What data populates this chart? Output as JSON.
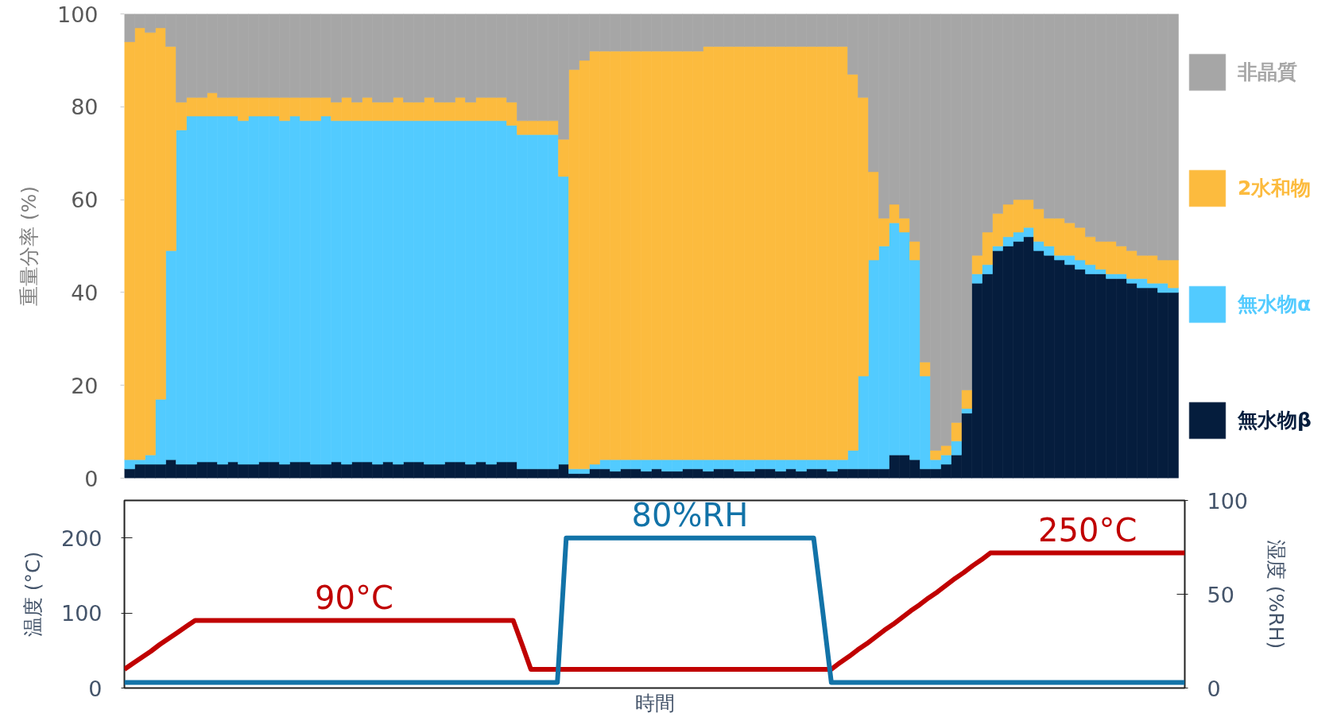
{
  "chart_data": [
    {
      "type": "bar",
      "stacked": true,
      "ylabel": "重量分率 (%)",
      "ylim": [
        0,
        100
      ],
      "yticks": [
        0,
        20,
        40,
        60,
        80,
        100
      ],
      "legend": "right",
      "categories": [
        null,
        null,
        null,
        null,
        null,
        null,
        null,
        null,
        null,
        null,
        null,
        null,
        null,
        null,
        null,
        null,
        null,
        null,
        null,
        null,
        null,
        null,
        null,
        null,
        null,
        null,
        null,
        null,
        null,
        null,
        null,
        null,
        null,
        null,
        null,
        null,
        null,
        null,
        null,
        null,
        null,
        null,
        null,
        null,
        null,
        null,
        null,
        null,
        null,
        null,
        null,
        null,
        null,
        null,
        null,
        null,
        null,
        null,
        null,
        null,
        null,
        null,
        null,
        null,
        null,
        null,
        null,
        null,
        null,
        null,
        null,
        null,
        null,
        null,
        null,
        null,
        null,
        null,
        null,
        null,
        null,
        null,
        null,
        null,
        null,
        null,
        null,
        null,
        null,
        null,
        null,
        null,
        null,
        null,
        null,
        null,
        null,
        null,
        null,
        null,
        null,
        null
      ],
      "series": [
        {
          "name": "無水物β",
          "color": "#051d3d",
          "values": [
            2,
            3,
            3,
            3,
            4,
            3,
            3,
            3.5,
            3.5,
            3,
            3.5,
            3,
            3,
            3.5,
            3.5,
            3,
            3.5,
            3.5,
            3,
            3,
            3.5,
            3,
            3.5,
            3.5,
            3,
            3.5,
            3,
            3.5,
            3.5,
            3,
            3,
            3.5,
            3.5,
            3,
            3.5,
            3,
            3.5,
            3.5,
            2,
            2,
            2,
            2,
            3,
            1,
            1,
            2,
            2,
            1.5,
            2,
            2,
            1.5,
            2,
            1.5,
            1.5,
            2,
            2,
            1.5,
            2,
            2,
            1.5,
            1.5,
            2,
            2,
            1.5,
            2,
            1.5,
            2,
            2,
            1.5,
            2,
            2,
            2,
            2,
            2,
            5,
            5,
            4,
            2,
            2,
            3,
            5,
            14,
            42,
            44,
            49,
            50,
            51,
            52,
            49,
            48,
            47,
            46,
            45,
            44,
            44,
            43,
            43,
            42,
            41,
            41,
            40,
            40
          ]
        },
        {
          "name": "無水物α",
          "color": "#52cbff",
          "values": [
            2,
            1,
            2,
            14,
            45,
            72,
            75,
            74.5,
            74.5,
            75,
            74.5,
            74,
            75,
            74.5,
            74.5,
            74,
            74.5,
            73.5,
            74,
            75,
            73.5,
            74,
            73.5,
            73.5,
            74,
            73.5,
            74,
            73.5,
            73.5,
            74,
            74,
            73.5,
            73.5,
            74,
            73.5,
            74,
            73.5,
            72.5,
            72,
            72,
            72,
            72,
            62,
            1,
            1,
            1,
            2,
            2.5,
            2,
            2,
            2.5,
            2,
            2.5,
            2.5,
            2,
            2,
            2.5,
            2,
            2,
            2.5,
            2.5,
            2,
            2,
            2.5,
            2,
            2.5,
            2,
            2,
            2.5,
            2,
            4,
            20,
            45,
            48,
            50,
            48,
            43,
            20,
            2,
            2,
            3,
            1,
            2,
            2,
            1,
            2,
            2,
            2,
            2,
            2,
            1,
            2,
            2,
            2,
            1,
            1,
            1,
            1,
            2,
            1,
            2,
            1
          ]
        },
        {
          "name": "2水和物",
          "color": "#fcbb3e",
          "values": [
            90,
            93,
            91,
            80,
            44,
            6,
            4,
            4,
            5,
            4,
            4,
            5,
            4,
            4,
            4,
            5,
            4,
            5,
            5,
            4,
            4,
            5,
            4,
            5,
            4,
            4,
            5,
            4,
            4,
            5,
            4,
            4,
            5,
            4,
            5,
            5,
            5,
            5,
            3,
            3,
            3,
            3,
            8,
            86,
            88,
            89,
            88,
            88,
            88,
            88,
            88,
            88,
            88,
            88,
            88,
            88,
            89,
            89,
            89,
            89,
            89,
            89,
            89,
            89,
            89,
            89,
            89,
            89,
            89,
            89,
            81,
            60,
            19,
            6,
            4,
            3,
            4,
            3,
            2,
            2,
            4,
            4,
            4,
            7,
            7,
            7,
            7,
            6,
            7,
            6,
            8,
            7,
            7,
            6,
            6,
            7,
            6,
            6,
            5,
            6,
            5,
            6
          ]
        },
        {
          "name": "非晶質",
          "color": "#a6a6a6",
          "values": [
            6,
            3,
            4,
            3,
            7,
            19,
            18,
            18,
            17,
            18,
            18,
            18,
            18,
            18,
            18,
            18,
            18,
            18,
            18,
            18,
            19,
            18,
            19,
            18,
            19,
            19,
            18,
            19,
            19,
            18,
            19,
            19,
            18,
            19,
            18,
            18,
            18,
            19,
            23,
            23,
            23,
            23,
            27,
            12,
            10,
            8,
            8,
            8,
            8,
            8,
            8,
            8,
            8,
            8,
            8,
            8,
            7,
            7,
            7,
            7,
            7,
            7,
            7,
            7,
            7,
            7,
            7,
            7,
            7,
            7,
            13,
            18,
            34,
            44,
            41,
            44,
            49,
            75,
            94,
            93,
            88,
            81,
            52,
            47,
            43,
            41,
            40,
            40,
            42,
            44,
            44,
            45,
            46,
            48,
            49,
            49,
            50,
            51,
            52,
            52,
            53,
            53
          ]
        }
      ]
    },
    {
      "type": "line",
      "xlabel": "時間",
      "ylabel": "温度 (°C)",
      "y2label": "湿度 (%RH)",
      "ylim": [
        0,
        250
      ],
      "yticks": [
        0,
        100,
        200
      ],
      "y2lim": [
        0,
        100
      ],
      "y2ticks": [
        0,
        50,
        100
      ],
      "categories": [
        null,
        null,
        null,
        null,
        null,
        null,
        null,
        null,
        null,
        null,
        null,
        null,
        null,
        null,
        null,
        null,
        null,
        null,
        null,
        null,
        null,
        null,
        null,
        null,
        null,
        null,
        null,
        null,
        null,
        null,
        null,
        null,
        null,
        null,
        null,
        null,
        null,
        null,
        null,
        null,
        null,
        null,
        null,
        null,
        null,
        null,
        null,
        null,
        null,
        null,
        null,
        null,
        null,
        null,
        null,
        null,
        null,
        null,
        null,
        null,
        null,
        null,
        null,
        null,
        null,
        null,
        null,
        null,
        null,
        null,
        null,
        null,
        null,
        null,
        null,
        null,
        null,
        null,
        null,
        null,
        null,
        null,
        null,
        null,
        null,
        null,
        null,
        null,
        null,
        null,
        null,
        null,
        null,
        null,
        null,
        null,
        null,
        null,
        null,
        null,
        null,
        null,
        null,
        null,
        null,
        null,
        null,
        null,
        null,
        null,
        null,
        null,
        null,
        null,
        null,
        null,
        null,
        null,
        null,
        null,
        null
      ],
      "series": [
        {
          "color": "#c00000",
          "values": [
            25,
            33,
            41,
            49,
            58,
            66,
            74,
            82,
            90,
            90,
            90,
            90,
            90,
            90,
            90,
            90,
            90,
            90,
            90,
            90,
            90,
            90,
            90,
            90,
            90,
            90,
            90,
            90,
            90,
            90,
            90,
            90,
            90,
            90,
            90,
            90,
            90,
            90,
            90,
            90,
            90,
            90,
            90,
            90,
            90,
            58,
            25,
            25,
            25,
            25,
            25,
            25,
            25,
            25,
            25,
            25,
            25,
            25,
            25,
            25,
            25,
            25,
            25,
            25,
            25,
            25,
            25,
            25,
            25,
            25,
            25,
            25,
            25,
            25,
            25,
            25,
            25,
            25,
            25,
            25,
            25,
            34,
            42,
            51,
            59,
            68,
            77,
            85,
            94,
            103,
            111,
            120,
            128,
            137,
            146,
            154,
            163,
            171,
            180,
            180,
            180,
            180,
            180,
            180,
            180,
            180,
            180,
            180,
            180,
            180,
            180,
            180,
            180,
            180,
            180,
            180,
            180,
            180,
            180,
            180,
            180
          ]
        },
        {
          "color": "#1273a8",
          "axis": "y2",
          "values": [
            3,
            3,
            3,
            3,
            3,
            3,
            3,
            3,
            3,
            3,
            3,
            3,
            3,
            3,
            3,
            3,
            3,
            3,
            3,
            3,
            3,
            3,
            3,
            3,
            3,
            3,
            3,
            3,
            3,
            3,
            3,
            3,
            3,
            3,
            3,
            3,
            3,
            3,
            3,
            3,
            3,
            3,
            3,
            3,
            3,
            3,
            3,
            3,
            3,
            3,
            80,
            80,
            80,
            80,
            80,
            80,
            80,
            80,
            80,
            80,
            80,
            80,
            80,
            80,
            80,
            80,
            80,
            80,
            80,
            80,
            80,
            80,
            80,
            80,
            80,
            80,
            80,
            80,
            80,
            42,
            3,
            3,
            3,
            3,
            3,
            3,
            3,
            3,
            3,
            3,
            3,
            3,
            3,
            3,
            3,
            3,
            3,
            3,
            3,
            3,
            3,
            3,
            3,
            3,
            3,
            3,
            3,
            3,
            3,
            3,
            3,
            3,
            3,
            3,
            3,
            3,
            3,
            3,
            3,
            3,
            3
          ]
        }
      ],
      "annotations": [
        {
          "text": "90°C",
          "y": 90
        },
        {
          "text": "80%RH",
          "y": 200
        },
        {
          "text": "250°C",
          "y": 180
        }
      ]
    }
  ]
}
